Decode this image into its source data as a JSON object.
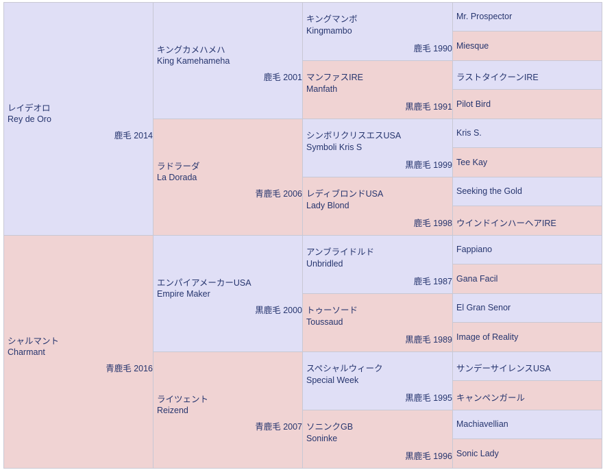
{
  "gen1": [
    {
      "jp": "レイデオロ",
      "en": "Rey de Oro",
      "info": "鹿毛 2014",
      "sex": "male"
    },
    {
      "jp": "シャルマント",
      "en": "Charmant",
      "info": "青鹿毛 2016",
      "sex": "female"
    }
  ],
  "gen2": [
    {
      "jp": "キングカメハメハ",
      "en": "King Kamehameha",
      "info": "鹿毛 2001",
      "sex": "male"
    },
    {
      "jp": "ラドラーダ",
      "en": "La Dorada",
      "info": "青鹿毛 2006",
      "sex": "female"
    },
    {
      "jp": "エンパイアメーカーUSA",
      "en": "Empire Maker",
      "info": "黒鹿毛 2000",
      "sex": "male"
    },
    {
      "jp": "ライツェント",
      "en": "Reizend",
      "info": "青鹿毛 2007",
      "sex": "female"
    }
  ],
  "gen3": [
    {
      "jp": "キングマンボ",
      "en": "Kingmambo",
      "info": "鹿毛 1990",
      "sex": "male"
    },
    {
      "jp": "マンファスIRE",
      "en": "Manfath",
      "info": "黒鹿毛 1991",
      "sex": "female"
    },
    {
      "jp": "シンボリクリスエスUSA",
      "en": "Symboli Kris S",
      "info": "黒鹿毛 1999",
      "sex": "male"
    },
    {
      "jp": "レディブロンドUSA",
      "en": "Lady Blond",
      "info": "鹿毛 1998",
      "sex": "female"
    },
    {
      "jp": "アンブライドルド",
      "en": "Unbridled",
      "info": "鹿毛 1987",
      "sex": "male"
    },
    {
      "jp": "トゥーソード",
      "en": "Toussaud",
      "info": "黒鹿毛 1989",
      "sex": "female"
    },
    {
      "jp": "スペシャルウィーク",
      "en": "Special Week",
      "info": "黒鹿毛 1995",
      "sex": "male"
    },
    {
      "jp": "ソニンクGB",
      "en": "Soninke",
      "info": "黒鹿毛 1996",
      "sex": "female"
    }
  ],
  "gen4": [
    {
      "name": "Mr. Prospector",
      "sex": "male"
    },
    {
      "name": "Miesque",
      "sex": "female"
    },
    {
      "name": "ラストタイクーンIRE",
      "sex": "male"
    },
    {
      "name": "Pilot Bird",
      "sex": "female"
    },
    {
      "name": "Kris S.",
      "sex": "male"
    },
    {
      "name": "Tee Kay",
      "sex": "female"
    },
    {
      "name": "Seeking the Gold",
      "sex": "male"
    },
    {
      "name": "ウインドインハーヘアIRE",
      "sex": "female"
    },
    {
      "name": "Fappiano",
      "sex": "male"
    },
    {
      "name": "Gana Facil",
      "sex": "female"
    },
    {
      "name": "El Gran Senor",
      "sex": "male"
    },
    {
      "name": "Image of Reality",
      "sex": "female"
    },
    {
      "name": "サンデーサイレンスUSA",
      "sex": "male"
    },
    {
      "name": "キャンペンガール",
      "sex": "female"
    },
    {
      "name": "Machiavellian",
      "sex": "male"
    },
    {
      "name": "Sonic Lady",
      "sex": "female"
    }
  ]
}
